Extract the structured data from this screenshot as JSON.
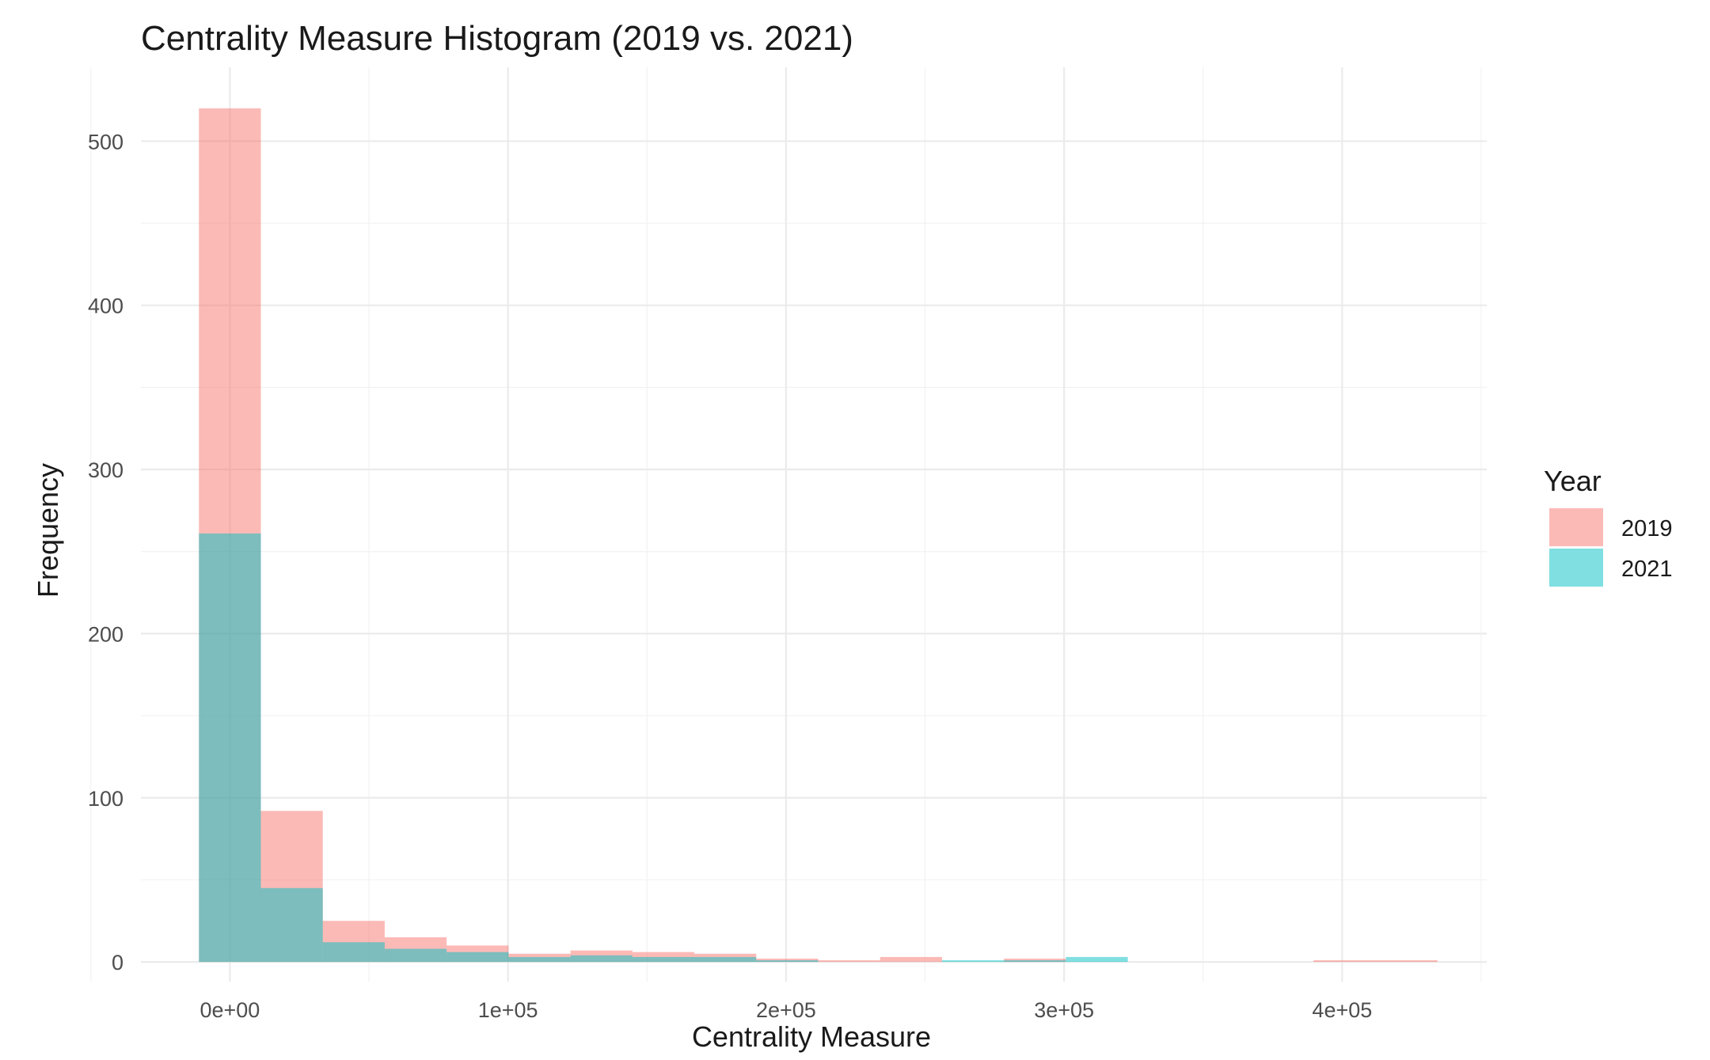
{
  "chart_data": {
    "type": "bar",
    "subtype": "overlapping histogram",
    "title": "Centrality Measure Histogram (2019 vs. 2021)",
    "xlabel": "Centrality Measure",
    "ylabel": "Frequency",
    "xlim": [
      -32000,
      452000
    ],
    "ylim": [
      -12,
      545
    ],
    "x_ticks": [
      0,
      100000,
      200000,
      300000,
      400000
    ],
    "x_tick_labels": [
      "0e+00",
      "1e+05",
      "2e+05",
      "3e+05",
      "4e+05"
    ],
    "y_ticks": [
      0,
      100,
      200,
      300,
      400,
      500
    ],
    "y_tick_labels": [
      "0",
      "100",
      "200",
      "300",
      "400",
      "500"
    ],
    "bin_width": 22270,
    "bin_centers": [
      0,
      22270,
      44540,
      66810,
      89080,
      111350,
      133620,
      155890,
      178160,
      200430,
      222700,
      244970,
      267240,
      289510,
      311780,
      334050,
      356320,
      378590,
      400860,
      423130
    ],
    "series": [
      {
        "name": "2019",
        "color": "#F8766D",
        "values": [
          520,
          92,
          25,
          15,
          10,
          5,
          7,
          6,
          5,
          2,
          1,
          3,
          0,
          2,
          0,
          0,
          0,
          0,
          1,
          1
        ]
      },
      {
        "name": "2021",
        "color": "#00BFC4",
        "values": [
          261,
          45,
          12,
          8,
          6,
          3,
          4,
          3,
          3,
          1,
          0,
          0,
          1,
          1,
          3,
          0,
          0,
          0,
          0,
          0
        ]
      }
    ],
    "legend": {
      "title": "Year",
      "position": "right"
    },
    "grid": true,
    "fill_alpha": 0.5
  }
}
